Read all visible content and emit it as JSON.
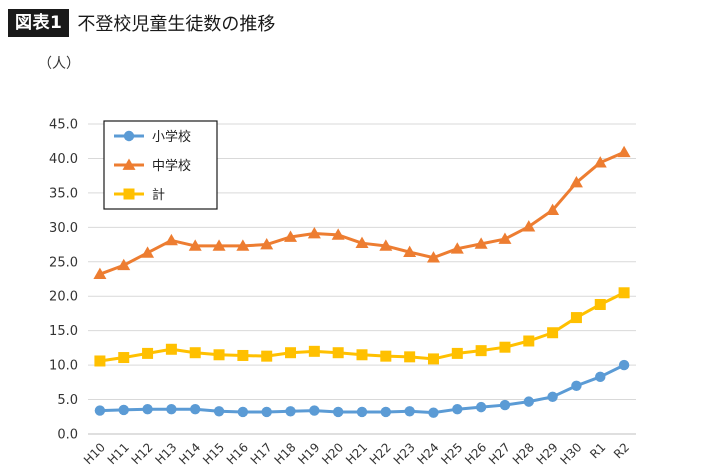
{
  "header": {
    "badge": "図表1",
    "title": "不登校児童生徒数の推移"
  },
  "unit_label": "（人）",
  "chart_data": {
    "type": "line",
    "title": "不登校児童生徒数の推移",
    "xlabel": "",
    "ylabel": "（人）",
    "ylim": [
      0,
      45
    ],
    "yticks": [
      "0.0",
      "5.0",
      "10.0",
      "15.0",
      "20.0",
      "25.0",
      "30.0",
      "35.0",
      "40.0",
      "45.0"
    ],
    "grid": true,
    "legend_position": "top-left",
    "categories": [
      "H10",
      "H11",
      "H12",
      "H13",
      "H14",
      "H15",
      "H16",
      "H17",
      "H18",
      "H19",
      "H20",
      "H21",
      "H22",
      "H23",
      "H24",
      "H25",
      "H26",
      "H27",
      "H28",
      "H29",
      "H30",
      "R1",
      "R2"
    ],
    "series": [
      {
        "name": "小学校",
        "color": "#5b9bd5",
        "marker": "circle",
        "values": [
          3.4,
          3.5,
          3.6,
          3.6,
          3.6,
          3.3,
          3.2,
          3.2,
          3.3,
          3.4,
          3.2,
          3.2,
          3.2,
          3.3,
          3.1,
          3.6,
          3.9,
          4.2,
          4.7,
          5.4,
          7.0,
          8.3,
          10.0
        ]
      },
      {
        "name": "中学校",
        "color": "#ed7d31",
        "marker": "triangle",
        "values": [
          23.2,
          24.5,
          26.3,
          28.1,
          27.3,
          27.3,
          27.3,
          27.5,
          28.6,
          29.1,
          28.9,
          27.7,
          27.3,
          26.4,
          25.6,
          26.9,
          27.6,
          28.3,
          30.1,
          32.5,
          36.5,
          39.4,
          40.9
        ]
      },
      {
        "name": "計",
        "color": "#ffc000",
        "marker": "square",
        "values": [
          10.6,
          11.1,
          11.7,
          12.3,
          11.8,
          11.5,
          11.4,
          11.3,
          11.8,
          12.0,
          11.8,
          11.5,
          11.3,
          11.2,
          10.9,
          11.7,
          12.1,
          12.6,
          13.5,
          14.7,
          16.9,
          18.8,
          20.5
        ]
      }
    ]
  }
}
